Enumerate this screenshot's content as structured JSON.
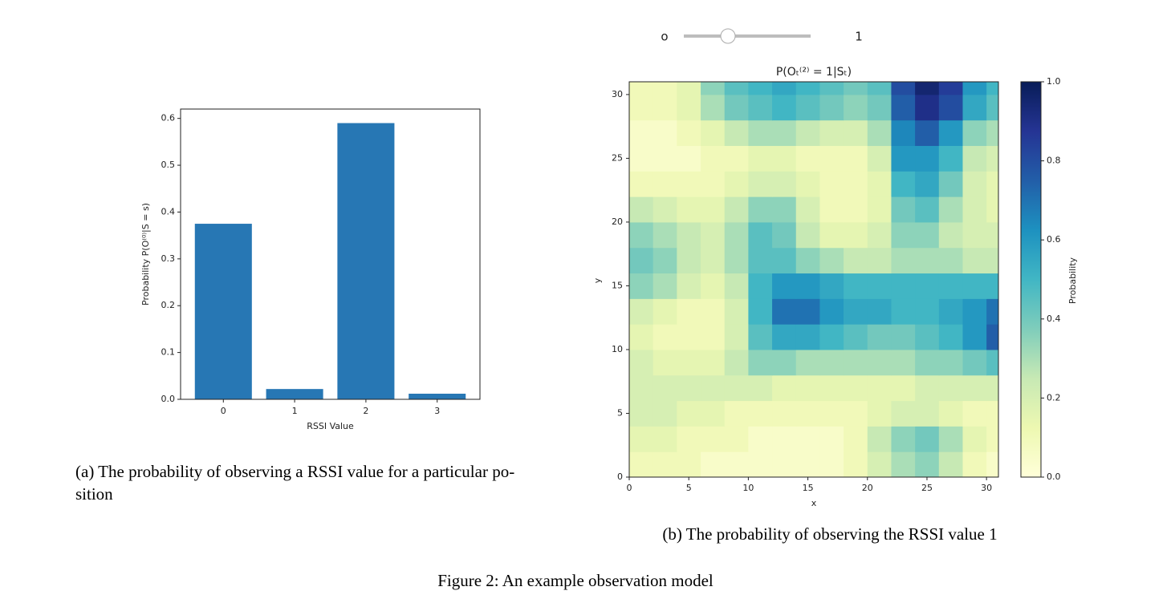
{
  "slider": {
    "label": "o",
    "value": 1
  },
  "chart_data": [
    {
      "type": "bar",
      "categories": [
        "0",
        "1",
        "2",
        "3"
      ],
      "values": [
        0.375,
        0.022,
        0.59,
        0.012
      ],
      "color": "#2777b4",
      "xlabel": "RSSI Value",
      "ylabel": "Probability P(O⁽⁰⁾|S = s)",
      "ylim": [
        0,
        0.62
      ],
      "yticks": [
        {
          "value": 0,
          "label": "0.0"
        },
        0.1,
        0.2,
        0.3,
        0.4,
        0.5,
        0.6
      ]
    },
    {
      "type": "heatmap",
      "title": "P(Oₜ⁽²⁾ = 1|Sₜ)",
      "xlabel": "x",
      "ylabel": "y",
      "colorbar_label": "Probability",
      "x": [
        0,
        2,
        4,
        6,
        8,
        10,
        12,
        14,
        16,
        18,
        20,
        22,
        24,
        26,
        28,
        30
      ],
      "y": [
        0,
        2,
        4,
        6,
        8,
        10,
        12,
        14,
        16,
        18,
        20,
        22,
        24,
        26,
        28,
        30
      ],
      "xlim": [
        0,
        31
      ],
      "ylim": [
        0,
        31
      ],
      "xticks": [
        0,
        5,
        10,
        15,
        20,
        25,
        30
      ],
      "yticks": [
        0,
        5,
        10,
        15,
        20,
        25,
        30
      ],
      "clim": [
        0,
        1
      ],
      "cticks": [
        {
          "value": 0,
          "label": "0.0"
        },
        0.2,
        0.4,
        0.6,
        0.8,
        {
          "value": 1,
          "label": "1.0"
        }
      ],
      "colormap": [
        "#ffffd9",
        "#edf8b1",
        "#c7e9b4",
        "#7fcdbb",
        "#41b6c4",
        "#1d91c0",
        "#225ea8",
        "#253494",
        "#081d58"
      ],
      "z": [
        [
          0.1,
          0.1,
          0.1,
          0.05,
          0.05,
          0.05,
          0.05,
          0.05,
          0.05,
          0.1,
          0.2,
          0.3,
          0.35,
          0.25,
          0.1,
          0.05
        ],
        [
          0.15,
          0.15,
          0.1,
          0.1,
          0.1,
          0.05,
          0.05,
          0.05,
          0.05,
          0.1,
          0.25,
          0.35,
          0.4,
          0.3,
          0.15,
          0.1
        ],
        [
          0.2,
          0.2,
          0.15,
          0.15,
          0.1,
          0.1,
          0.1,
          0.1,
          0.1,
          0.1,
          0.15,
          0.2,
          0.2,
          0.15,
          0.1,
          0.1
        ],
        [
          0.2,
          0.2,
          0.2,
          0.2,
          0.2,
          0.2,
          0.15,
          0.15,
          0.15,
          0.15,
          0.15,
          0.15,
          0.2,
          0.2,
          0.2,
          0.2
        ],
        [
          0.2,
          0.15,
          0.15,
          0.15,
          0.25,
          0.35,
          0.35,
          0.3,
          0.3,
          0.3,
          0.3,
          0.3,
          0.35,
          0.35,
          0.4,
          0.45
        ],
        [
          0.15,
          0.1,
          0.1,
          0.1,
          0.2,
          0.45,
          0.55,
          0.55,
          0.5,
          0.45,
          0.4,
          0.4,
          0.45,
          0.5,
          0.6,
          0.75
        ],
        [
          0.2,
          0.15,
          0.1,
          0.1,
          0.2,
          0.5,
          0.7,
          0.7,
          0.6,
          0.55,
          0.55,
          0.5,
          0.5,
          0.55,
          0.6,
          0.7
        ],
        [
          0.35,
          0.3,
          0.2,
          0.15,
          0.25,
          0.5,
          0.6,
          0.6,
          0.55,
          0.5,
          0.5,
          0.5,
          0.5,
          0.5,
          0.5,
          0.5
        ],
        [
          0.4,
          0.35,
          0.25,
          0.2,
          0.3,
          0.45,
          0.45,
          0.35,
          0.3,
          0.25,
          0.25,
          0.3,
          0.3,
          0.3,
          0.25,
          0.25
        ],
        [
          0.35,
          0.3,
          0.25,
          0.2,
          0.3,
          0.45,
          0.4,
          0.25,
          0.15,
          0.15,
          0.2,
          0.35,
          0.35,
          0.25,
          0.2,
          0.2
        ],
        [
          0.25,
          0.2,
          0.15,
          0.15,
          0.25,
          0.35,
          0.35,
          0.2,
          0.1,
          0.1,
          0.15,
          0.4,
          0.45,
          0.3,
          0.2,
          0.15
        ],
        [
          0.1,
          0.1,
          0.1,
          0.1,
          0.15,
          0.2,
          0.2,
          0.15,
          0.1,
          0.1,
          0.15,
          0.5,
          0.55,
          0.4,
          0.2,
          0.15
        ],
        [
          0.05,
          0.05,
          0.05,
          0.1,
          0.1,
          0.15,
          0.15,
          0.1,
          0.1,
          0.1,
          0.2,
          0.6,
          0.6,
          0.5,
          0.25,
          0.2
        ],
        [
          0.05,
          0.05,
          0.1,
          0.15,
          0.25,
          0.3,
          0.3,
          0.25,
          0.2,
          0.2,
          0.3,
          0.65,
          0.75,
          0.6,
          0.35,
          0.3
        ],
        [
          0.1,
          0.1,
          0.15,
          0.3,
          0.4,
          0.45,
          0.5,
          0.45,
          0.4,
          0.35,
          0.4,
          0.75,
          0.9,
          0.8,
          0.55,
          0.45
        ],
        [
          0.1,
          0.1,
          0.15,
          0.35,
          0.45,
          0.5,
          0.55,
          0.5,
          0.45,
          0.4,
          0.45,
          0.8,
          0.95,
          0.85,
          0.6,
          0.5
        ]
      ]
    }
  ],
  "captions": [
    [
      "(a) The probability of observing a RSSI value for a particular po-",
      "sition"
    ],
    [
      "(b) The probability of observing the RSSI value 1"
    ]
  ],
  "figure_caption": "Figure 2: An example observation model"
}
